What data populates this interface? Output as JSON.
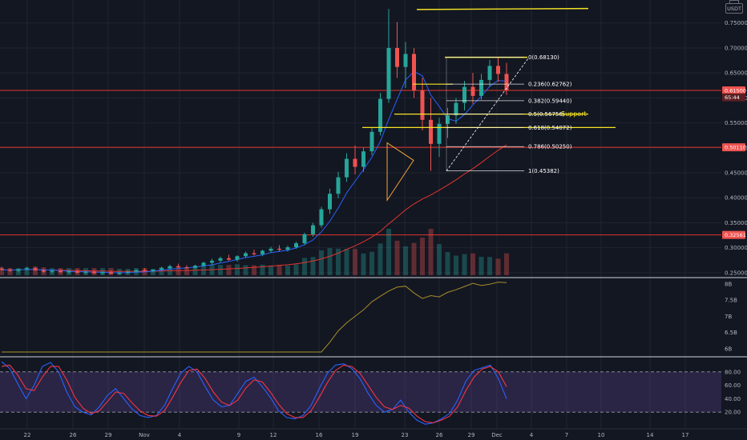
{
  "quote_currency": "USDT",
  "colors": {
    "background": "#131722",
    "grid": "#1f2430",
    "up": "#26a69a",
    "down": "#ef5350",
    "fib": "#ffffff",
    "highlight": "#f5e425",
    "hline": "#e2342e",
    "ma_fast": "#2962ff",
    "ma_slow": "#e2342e",
    "indicator": "#a88c2b",
    "stoch_k": "#2962ff",
    "stoch_d": "#f23645",
    "stoch_band": "#7e57c2"
  },
  "chart_data": [
    {
      "type": "candlestick",
      "pane": "price",
      "y_ticks": [
        "0.75000",
        "0.70000",
        "0.65000",
        "0.60000",
        "0.55000",
        "0.50000",
        "0.45000",
        "0.40000",
        "0.35000",
        "0.30000",
        "0.25000"
      ],
      "ylim": [
        0.245,
        0.78
      ],
      "x_labels": [
        "22",
        "26",
        "29",
        "Nov",
        "4",
        "9",
        "12",
        "16",
        "19",
        "23",
        "26",
        "29",
        "Dec",
        "4",
        "7",
        "10",
        "14",
        "17"
      ],
      "price_tags": [
        {
          "value": "0.61500",
          "level": 0.615
        },
        {
          "value": "65:44",
          "level": 0.601
        },
        {
          "value": "0.50110",
          "level": 0.5011
        },
        {
          "value": "0.32561",
          "level": 0.32561
        }
      ],
      "fib_levels": [
        {
          "label": "0(0.68130)",
          "value": 0.6813
        },
        {
          "label": "0.236(0.62762)",
          "value": 0.62762
        },
        {
          "label": "0.382(0.59440)",
          "value": 0.5944
        },
        {
          "label": "0.5(0.56756)",
          "value": 0.56756
        },
        {
          "label": "0.618(0.54072)",
          "value": 0.54072
        },
        {
          "label": "0.786(0.50250)",
          "value": 0.5025
        },
        {
          "label": "1(0.45382)",
          "value": 0.45382
        }
      ],
      "annotation": "Support",
      "horizontal_lines": [
        0.615,
        0.5011,
        0.32561
      ],
      "highlight_lines": [
        0.777,
        0.6813,
        0.6275,
        0.5676,
        0.5407
      ],
      "ohlc_daily": [
        [
          0.258,
          0.262,
          0.254,
          0.256
        ],
        [
          0.256,
          0.259,
          0.252,
          0.254
        ],
        [
          0.254,
          0.258,
          0.251,
          0.257
        ],
        [
          0.257,
          0.262,
          0.254,
          0.259
        ],
        [
          0.259,
          0.262,
          0.253,
          0.255
        ],
        [
          0.255,
          0.258,
          0.25,
          0.252
        ],
        [
          0.252,
          0.256,
          0.249,
          0.254
        ],
        [
          0.254,
          0.257,
          0.25,
          0.251
        ],
        [
          0.251,
          0.255,
          0.248,
          0.253
        ],
        [
          0.253,
          0.256,
          0.249,
          0.25
        ],
        [
          0.25,
          0.254,
          0.247,
          0.252
        ],
        [
          0.252,
          0.255,
          0.248,
          0.249
        ],
        [
          0.249,
          0.253,
          0.246,
          0.251
        ],
        [
          0.251,
          0.254,
          0.247,
          0.248
        ],
        [
          0.248,
          0.252,
          0.246,
          0.25
        ],
        [
          0.25,
          0.254,
          0.248,
          0.252
        ],
        [
          0.252,
          0.257,
          0.25,
          0.255
        ],
        [
          0.255,
          0.259,
          0.252,
          0.253
        ],
        [
          0.253,
          0.257,
          0.251,
          0.256
        ],
        [
          0.256,
          0.262,
          0.254,
          0.259
        ],
        [
          0.259,
          0.266,
          0.257,
          0.263
        ],
        [
          0.263,
          0.268,
          0.259,
          0.261
        ],
        [
          0.261,
          0.265,
          0.257,
          0.26
        ],
        [
          0.26,
          0.266,
          0.258,
          0.264
        ],
        [
          0.264,
          0.272,
          0.262,
          0.27
        ],
        [
          0.27,
          0.278,
          0.266,
          0.274
        ],
        [
          0.274,
          0.282,
          0.27,
          0.279
        ],
        [
          0.279,
          0.286,
          0.274,
          0.276
        ],
        [
          0.276,
          0.285,
          0.272,
          0.283
        ],
        [
          0.283,
          0.292,
          0.28,
          0.289
        ],
        [
          0.289,
          0.296,
          0.284,
          0.287
        ],
        [
          0.287,
          0.296,
          0.283,
          0.294
        ],
        [
          0.294,
          0.302,
          0.29,
          0.298
        ],
        [
          0.298,
          0.305,
          0.292,
          0.296
        ],
        [
          0.296,
          0.304,
          0.292,
          0.301
        ],
        [
          0.301,
          0.312,
          0.298,
          0.309
        ],
        [
          0.309,
          0.33,
          0.305,
          0.327
        ],
        [
          0.327,
          0.35,
          0.322,
          0.345
        ],
        [
          0.345,
          0.382,
          0.34,
          0.377
        ],
        [
          0.377,
          0.418,
          0.368,
          0.408
        ],
        [
          0.408,
          0.452,
          0.399,
          0.441
        ],
        [
          0.441,
          0.489,
          0.432,
          0.478
        ],
        [
          0.478,
          0.505,
          0.447,
          0.462
        ],
        [
          0.462,
          0.5,
          0.452,
          0.493
        ],
        [
          0.493,
          0.541,
          0.485,
          0.532
        ],
        [
          0.532,
          0.61,
          0.525,
          0.598
        ],
        [
          0.598,
          0.778,
          0.59,
          0.7
        ],
        [
          0.7,
          0.752,
          0.64,
          0.662
        ],
        [
          0.662,
          0.712,
          0.62,
          0.688
        ],
        [
          0.688,
          0.7,
          0.6,
          0.615
        ],
        [
          0.615,
          0.64,
          0.535,
          0.556
        ],
        [
          0.556,
          0.6,
          0.454,
          0.508
        ],
        [
          0.508,
          0.56,
          0.482,
          0.548
        ],
        [
          0.548,
          0.58,
          0.52,
          0.565
        ],
        [
          0.565,
          0.6,
          0.548,
          0.59
        ],
        [
          0.59,
          0.634,
          0.575,
          0.622
        ],
        [
          0.622,
          0.65,
          0.588,
          0.604
        ],
        [
          0.604,
          0.648,
          0.596,
          0.636
        ],
        [
          0.636,
          0.676,
          0.622,
          0.664
        ],
        [
          0.664,
          0.681,
          0.632,
          0.648
        ],
        [
          0.648,
          0.67,
          0.606,
          0.615
        ]
      ]
    },
    {
      "type": "line",
      "pane": "indicator",
      "y_ticks": [
        "8B",
        "7.5B",
        "7B",
        "6.5B",
        "6B"
      ],
      "ylim": [
        5.9,
        8.12
      ],
      "values": [
        5.9,
        5.9,
        5.9,
        5.9,
        5.9,
        5.9,
        5.9,
        5.9,
        5.9,
        5.9,
        5.9,
        5.9,
        5.9,
        5.9,
        5.9,
        5.9,
        5.9,
        5.9,
        5.9,
        5.9,
        5.9,
        5.9,
        5.9,
        5.9,
        5.9,
        5.9,
        5.9,
        5.9,
        5.9,
        5.9,
        5.9,
        5.9,
        5.9,
        5.9,
        5.9,
        5.9,
        5.9,
        5.9,
        5.9,
        6.2,
        6.55,
        6.8,
        7.0,
        7.2,
        7.45,
        7.62,
        7.78,
        7.9,
        7.93,
        7.72,
        7.55,
        7.64,
        7.6,
        7.74,
        7.82,
        7.92,
        8.02,
        7.95,
        7.99,
        8.05,
        8.04
      ]
    },
    {
      "type": "line",
      "pane": "stochastic",
      "y_ticks": [
        "80.00",
        "60.00",
        "40.00",
        "20.00"
      ],
      "ylim": [
        0,
        100
      ],
      "band": [
        20,
        80
      ],
      "series": [
        {
          "values": [
            95,
            85,
            62,
            40,
            60,
            88,
            94,
            80,
            50,
            28,
            20,
            16,
            28,
            45,
            55,
            40,
            25,
            15,
            12,
            15,
            30,
            55,
            78,
            88,
            80,
            58,
            38,
            28,
            30,
            48,
            66,
            72,
            58,
            42,
            22,
            12,
            10,
            15,
            30,
            55,
            78,
            90,
            92,
            85,
            70,
            48,
            30,
            20,
            24,
            38,
            20,
            8,
            2,
            4,
            10,
            18,
            38,
            66,
            82,
            86,
            90,
            70,
            40
          ]
        },
        {
          "values": [
            88,
            90,
            75,
            55,
            52,
            72,
            88,
            88,
            68,
            42,
            26,
            18,
            22,
            36,
            50,
            48,
            34,
            22,
            15,
            14,
            22,
            42,
            64,
            82,
            84,
            70,
            50,
            35,
            30,
            38,
            56,
            68,
            65,
            50,
            32,
            18,
            12,
            12,
            22,
            42,
            64,
            82,
            90,
            88,
            78,
            60,
            42,
            28,
            24,
            30,
            26,
            14,
            6,
            4,
            8,
            14,
            28,
            52,
            72,
            84,
            88,
            80,
            58
          ]
        }
      ]
    }
  ]
}
